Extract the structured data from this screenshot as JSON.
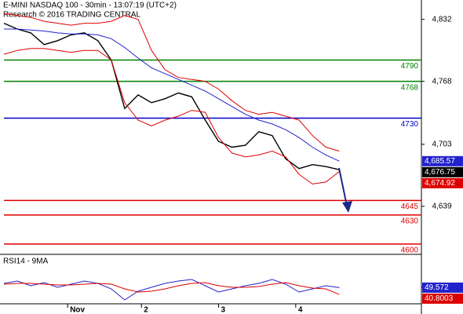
{
  "chart_data": [
    {
      "type": "line",
      "title": "E-MINI NASDAQ 100 - 30min - 13:07:19 (UTC+2)",
      "subtitle": "Research © 2016 TRADING CENTRAL",
      "x": [
        0,
        4,
        8,
        12,
        16,
        20,
        24,
        28,
        32,
        36,
        40,
        44,
        48,
        52,
        56,
        60,
        64,
        68,
        72,
        76,
        80,
        84,
        88,
        92,
        96,
        100
      ],
      "xlim": [
        0,
        124
      ],
      "xticks": [
        {
          "value": 19,
          "label": "Nov"
        },
        {
          "value": 41,
          "label": "2"
        },
        {
          "value": 64,
          "label": "3"
        },
        {
          "value": 87,
          "label": "4"
        }
      ],
      "ylim": [
        4591,
        4852
      ],
      "yticks": [
        {
          "value": 4832,
          "label": "4,832"
        },
        {
          "value": 4768,
          "label": "4,768"
        },
        {
          "value": 4703,
          "label": "4,703"
        },
        {
          "value": 4639,
          "label": "4,639"
        }
      ],
      "series": [
        {
          "color": "#000000",
          "values": [
            4828,
            4822,
            4818,
            4806,
            4810,
            4816,
            4818,
            4810,
            4790,
            4740,
            4754,
            4746,
            4750,
            4756,
            4752,
            4728,
            4706,
            4700,
            4702,
            4716,
            4712,
            4688,
            4678,
            4682,
            4680,
            4676.75
          ],
          "value_labels": [
            null,
            null,
            null,
            null,
            null,
            null,
            null,
            null,
            null,
            null,
            null,
            null,
            null,
            null,
            null,
            null,
            null,
            null,
            null,
            null,
            null,
            null,
            null,
            null,
            null,
            "4,676.75"
          ]
        },
        {
          "color": "#2222cc",
          "values": [
            4822,
            4822,
            4821,
            4820,
            4818,
            4817,
            4817,
            4816,
            4812,
            4803,
            4792,
            4782,
            4776,
            4770,
            4764,
            4758,
            4750,
            4742,
            4734,
            4728,
            4724,
            4718,
            4710,
            4700,
            4692,
            4685.57
          ],
          "value_labels": [
            null,
            null,
            null,
            null,
            null,
            null,
            null,
            null,
            null,
            null,
            null,
            null,
            null,
            null,
            null,
            null,
            null,
            null,
            null,
            null,
            null,
            null,
            null,
            null,
            null,
            "4,685.57"
          ]
        },
        {
          "color": "#dd0000",
          "values": [
            4838,
            4836,
            4834,
            4830,
            4828,
            4826,
            4828,
            4828,
            4830,
            4836,
            4832,
            4800,
            4780,
            4772,
            4770,
            4768,
            4760,
            4748,
            4738,
            4734,
            4736,
            4732,
            4728,
            4712,
            4700,
            4696
          ]
        },
        {
          "color": "#dd0000",
          "values": [
            4796,
            4800,
            4802,
            4802,
            4800,
            4798,
            4800,
            4800,
            4790,
            4746,
            4728,
            4722,
            4728,
            4732,
            4738,
            4736,
            4710,
            4694,
            4690,
            4692,
            4696,
            4690,
            4672,
            4662,
            4664,
            4674.92
          ],
          "value_labels": [
            null,
            null,
            null,
            null,
            null,
            null,
            null,
            null,
            null,
            null,
            null,
            null,
            null,
            null,
            null,
            null,
            null,
            null,
            null,
            null,
            null,
            null,
            null,
            null,
            null,
            "4,674.92"
          ]
        }
      ],
      "levels": [
        {
          "value": 4790,
          "color": "#008000"
        },
        {
          "value": 4768,
          "color": "#008000"
        },
        {
          "value": 4730,
          "color": "#0000cc"
        },
        {
          "value": 4645,
          "color": "#dd0000"
        },
        {
          "value": 4630,
          "color": "#dd0000"
        },
        {
          "value": 4600,
          "color": "#dd0000"
        }
      ]
    },
    {
      "type": "line",
      "title": "RSI14 - 9MA",
      "x": [
        0,
        4,
        8,
        12,
        16,
        20,
        24,
        28,
        32,
        36,
        40,
        44,
        48,
        52,
        56,
        60,
        64,
        68,
        72,
        76,
        80,
        84,
        88,
        92,
        96,
        100
      ],
      "xlim": [
        0,
        124
      ],
      "ylim": [
        30,
        90
      ],
      "yticks": [
        50
      ],
      "series": [
        {
          "color": "#2222cc",
          "values": [
            55,
            58,
            52,
            56,
            50,
            54,
            58,
            55,
            48,
            34,
            45,
            50,
            55,
            58,
            60,
            52,
            44,
            48,
            52,
            55,
            60,
            54,
            44,
            48,
            52,
            49.572
          ]
        },
        {
          "color": "#dd0000",
          "values": [
            54,
            55,
            55,
            54,
            53,
            53,
            54,
            55,
            54,
            48,
            44,
            45,
            48,
            52,
            55,
            56,
            52,
            50,
            50,
            51,
            54,
            56,
            52,
            49,
            48,
            40.8003
          ]
        }
      ]
    }
  ]
}
